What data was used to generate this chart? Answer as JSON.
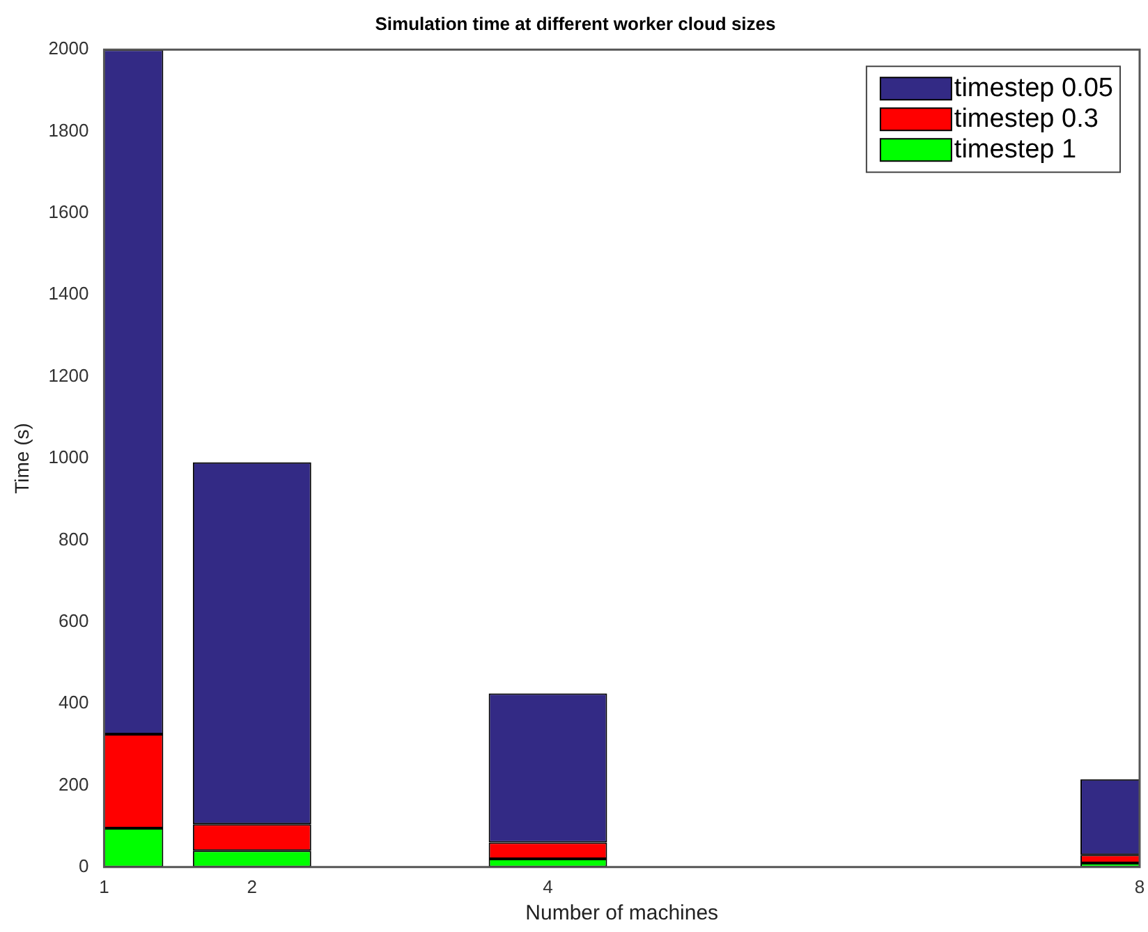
{
  "chart_data": {
    "type": "bar",
    "title": "Simulation time at different worker cloud sizes",
    "xlabel": "Number of machines",
    "ylabel": "Time (s)",
    "x": [
      1,
      2,
      4,
      8
    ],
    "stacked": true,
    "series": [
      {
        "name": "timestep 1",
        "color": "#00ff00",
        "values": [
          95,
          40,
          20,
          10
        ]
      },
      {
        "name": "timestep 0.3",
        "color": "#ff0000",
        "values": [
          230,
          65,
          40,
          20
        ]
      },
      {
        "name": "timestep 0.05",
        "color": "#332a85",
        "values": [
          1675,
          885,
          365,
          185
        ]
      }
    ],
    "xlim": [
      1,
      8
    ],
    "xticks": [
      1,
      2,
      4,
      8
    ],
    "ylim": [
      0,
      2000
    ],
    "yticks": [
      0,
      200,
      400,
      600,
      800,
      1000,
      1200,
      1400,
      1600,
      1800,
      2000
    ],
    "grid": false,
    "legend": "top right"
  }
}
